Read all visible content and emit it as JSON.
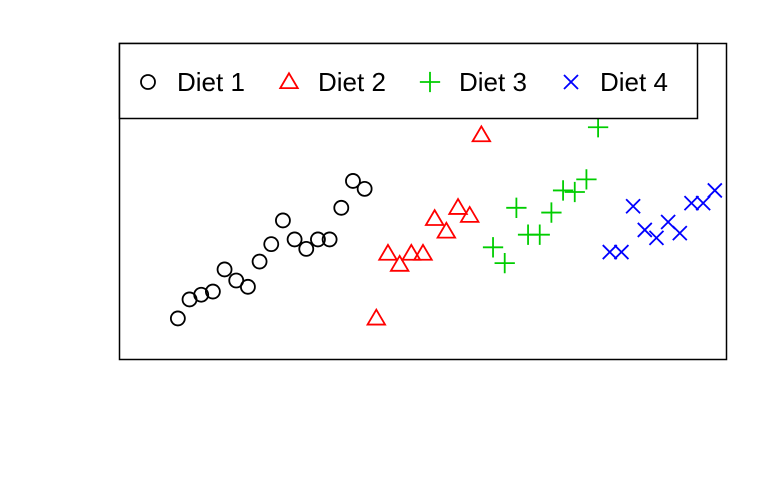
{
  "chart_data": {
    "type": "scatter",
    "title": "",
    "xlabel": "",
    "ylabel": "",
    "xlim": [
      0,
      52
    ],
    "ylim": [
      0,
      10
    ],
    "legend": {
      "position": "top-left",
      "boxed": true
    },
    "series": [
      {
        "name": "Diet 1",
        "symbol": "circle",
        "color": "#000000",
        "x": [
          5,
          6,
          7,
          8,
          9,
          10,
          11,
          12,
          13,
          14,
          15,
          16,
          17,
          18,
          19,
          20,
          21
        ],
        "y": [
          1.3,
          1.9,
          2.05,
          2.15,
          2.85,
          2.5,
          2.3,
          3.1,
          3.65,
          4.4,
          3.8,
          3.5,
          3.8,
          3.8,
          4.8,
          5.65,
          5.4
        ]
      },
      {
        "name": "Diet 2",
        "symbol": "triangle",
        "color": "#ff0000",
        "x": [
          22,
          23,
          24,
          25,
          26,
          27,
          28,
          29,
          30,
          31
        ],
        "y": [
          1.3,
          3.35,
          3.0,
          3.35,
          3.35,
          4.45,
          4.05,
          4.8,
          4.55,
          7.1
        ]
      },
      {
        "name": "Diet 3",
        "symbol": "plus",
        "color": "#00cd00",
        "x": [
          32,
          33,
          34,
          35,
          36,
          37,
          38,
          39,
          40,
          41
        ],
        "y": [
          3.55,
          3.05,
          4.8,
          3.95,
          3.95,
          4.65,
          5.35,
          5.3,
          5.7,
          7.35
        ]
      },
      {
        "name": "Diet 4",
        "symbol": "cross",
        "color": "#0000ff",
        "x": [
          42,
          43,
          44,
          45,
          46,
          47,
          48,
          49,
          50,
          51
        ],
        "y": [
          3.4,
          3.4,
          4.85,
          4.1,
          3.85,
          4.35,
          4.0,
          4.95,
          4.95,
          5.35
        ]
      }
    ]
  }
}
